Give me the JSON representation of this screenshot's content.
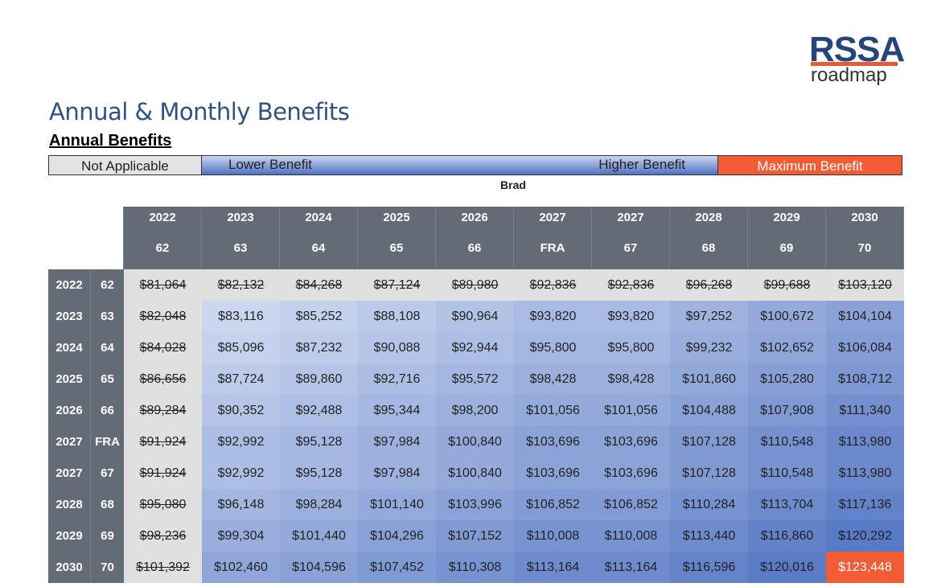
{
  "logo": {
    "brand": "RSSA",
    "sub": "roadmap"
  },
  "page_title": "Annual & Monthly Benefits",
  "section_title": "Annual Benefits",
  "legend": {
    "not_applicable": "Not Applicable",
    "lower": "Lower Benefit",
    "higher": "Higher Benefit",
    "maximum": "Maximum Benefit"
  },
  "person": "Brad",
  "columns": [
    {
      "year": "2022",
      "age": "62"
    },
    {
      "year": "2023",
      "age": "63"
    },
    {
      "year": "2024",
      "age": "64"
    },
    {
      "year": "2025",
      "age": "65"
    },
    {
      "year": "2026",
      "age": "66"
    },
    {
      "year": "2027",
      "age": "FRA"
    },
    {
      "year": "2027",
      "age": "67"
    },
    {
      "year": "2028",
      "age": "68"
    },
    {
      "year": "2029",
      "age": "69"
    },
    {
      "year": "2030",
      "age": "70"
    }
  ],
  "rows": [
    {
      "year": "2022",
      "age": "62",
      "cells": [
        "$81,064",
        "$82,132",
        "$84,268",
        "$87,124",
        "$89,980",
        "$92,836",
        "$92,836",
        "$96,268",
        "$99,688",
        "$103,120"
      ],
      "na_count": 10
    },
    {
      "year": "2023",
      "age": "63",
      "cells": [
        "$82,048",
        "$83,116",
        "$85,252",
        "$88,108",
        "$90,964",
        "$93,820",
        "$93,820",
        "$97,252",
        "$100,672",
        "$104,104"
      ],
      "na_count": 1
    },
    {
      "year": "2024",
      "age": "64",
      "cells": [
        "$84,028",
        "$85,096",
        "$87,232",
        "$90,088",
        "$92,944",
        "$95,800",
        "$95,800",
        "$99,232",
        "$102,652",
        "$106,084"
      ],
      "na_count": 1
    },
    {
      "year": "2025",
      "age": "65",
      "cells": [
        "$86,656",
        "$87,724",
        "$89,860",
        "$92,716",
        "$95,572",
        "$98,428",
        "$98,428",
        "$101,860",
        "$105,280",
        "$108,712"
      ],
      "na_count": 1
    },
    {
      "year": "2026",
      "age": "66",
      "cells": [
        "$89,284",
        "$90,352",
        "$92,488",
        "$95,344",
        "$98,200",
        "$101,056",
        "$101,056",
        "$104,488",
        "$107,908",
        "$111,340"
      ],
      "na_count": 1
    },
    {
      "year": "2027",
      "age": "FRA",
      "cells": [
        "$91,924",
        "$92,992",
        "$95,128",
        "$97,984",
        "$100,840",
        "$103,696",
        "$103,696",
        "$107,128",
        "$110,548",
        "$113,980"
      ],
      "na_count": 1
    },
    {
      "year": "2027",
      "age": "67",
      "cells": [
        "$91,924",
        "$92,992",
        "$95,128",
        "$97,984",
        "$100,840",
        "$103,696",
        "$103,696",
        "$107,128",
        "$110,548",
        "$113,980"
      ],
      "na_count": 1
    },
    {
      "year": "2028",
      "age": "68",
      "cells": [
        "$95,080",
        "$96,148",
        "$98,284",
        "$101,140",
        "$103,996",
        "$106,852",
        "$106,852",
        "$110,284",
        "$113,704",
        "$117,136"
      ],
      "na_count": 1
    },
    {
      "year": "2029",
      "age": "69",
      "cells": [
        "$98,236",
        "$99,304",
        "$101,440",
        "$104,296",
        "$107,152",
        "$110,008",
        "$110,008",
        "$113,440",
        "$116,860",
        "$120,292"
      ],
      "na_count": 1
    },
    {
      "year": "2030",
      "age": "70",
      "cells": [
        "$101,392",
        "$102,460",
        "$104,596",
        "$107,452",
        "$110,308",
        "$113,164",
        "$113,164",
        "$116,596",
        "$120,016",
        "$123,448"
      ],
      "na_count": 1
    }
  ],
  "max_value": "$123,448",
  "colors": {
    "header": "#636c76",
    "na": "#e0e0e0",
    "max": "#f15c34",
    "low": "#cbd6ef",
    "high": "#4f72c2"
  }
}
